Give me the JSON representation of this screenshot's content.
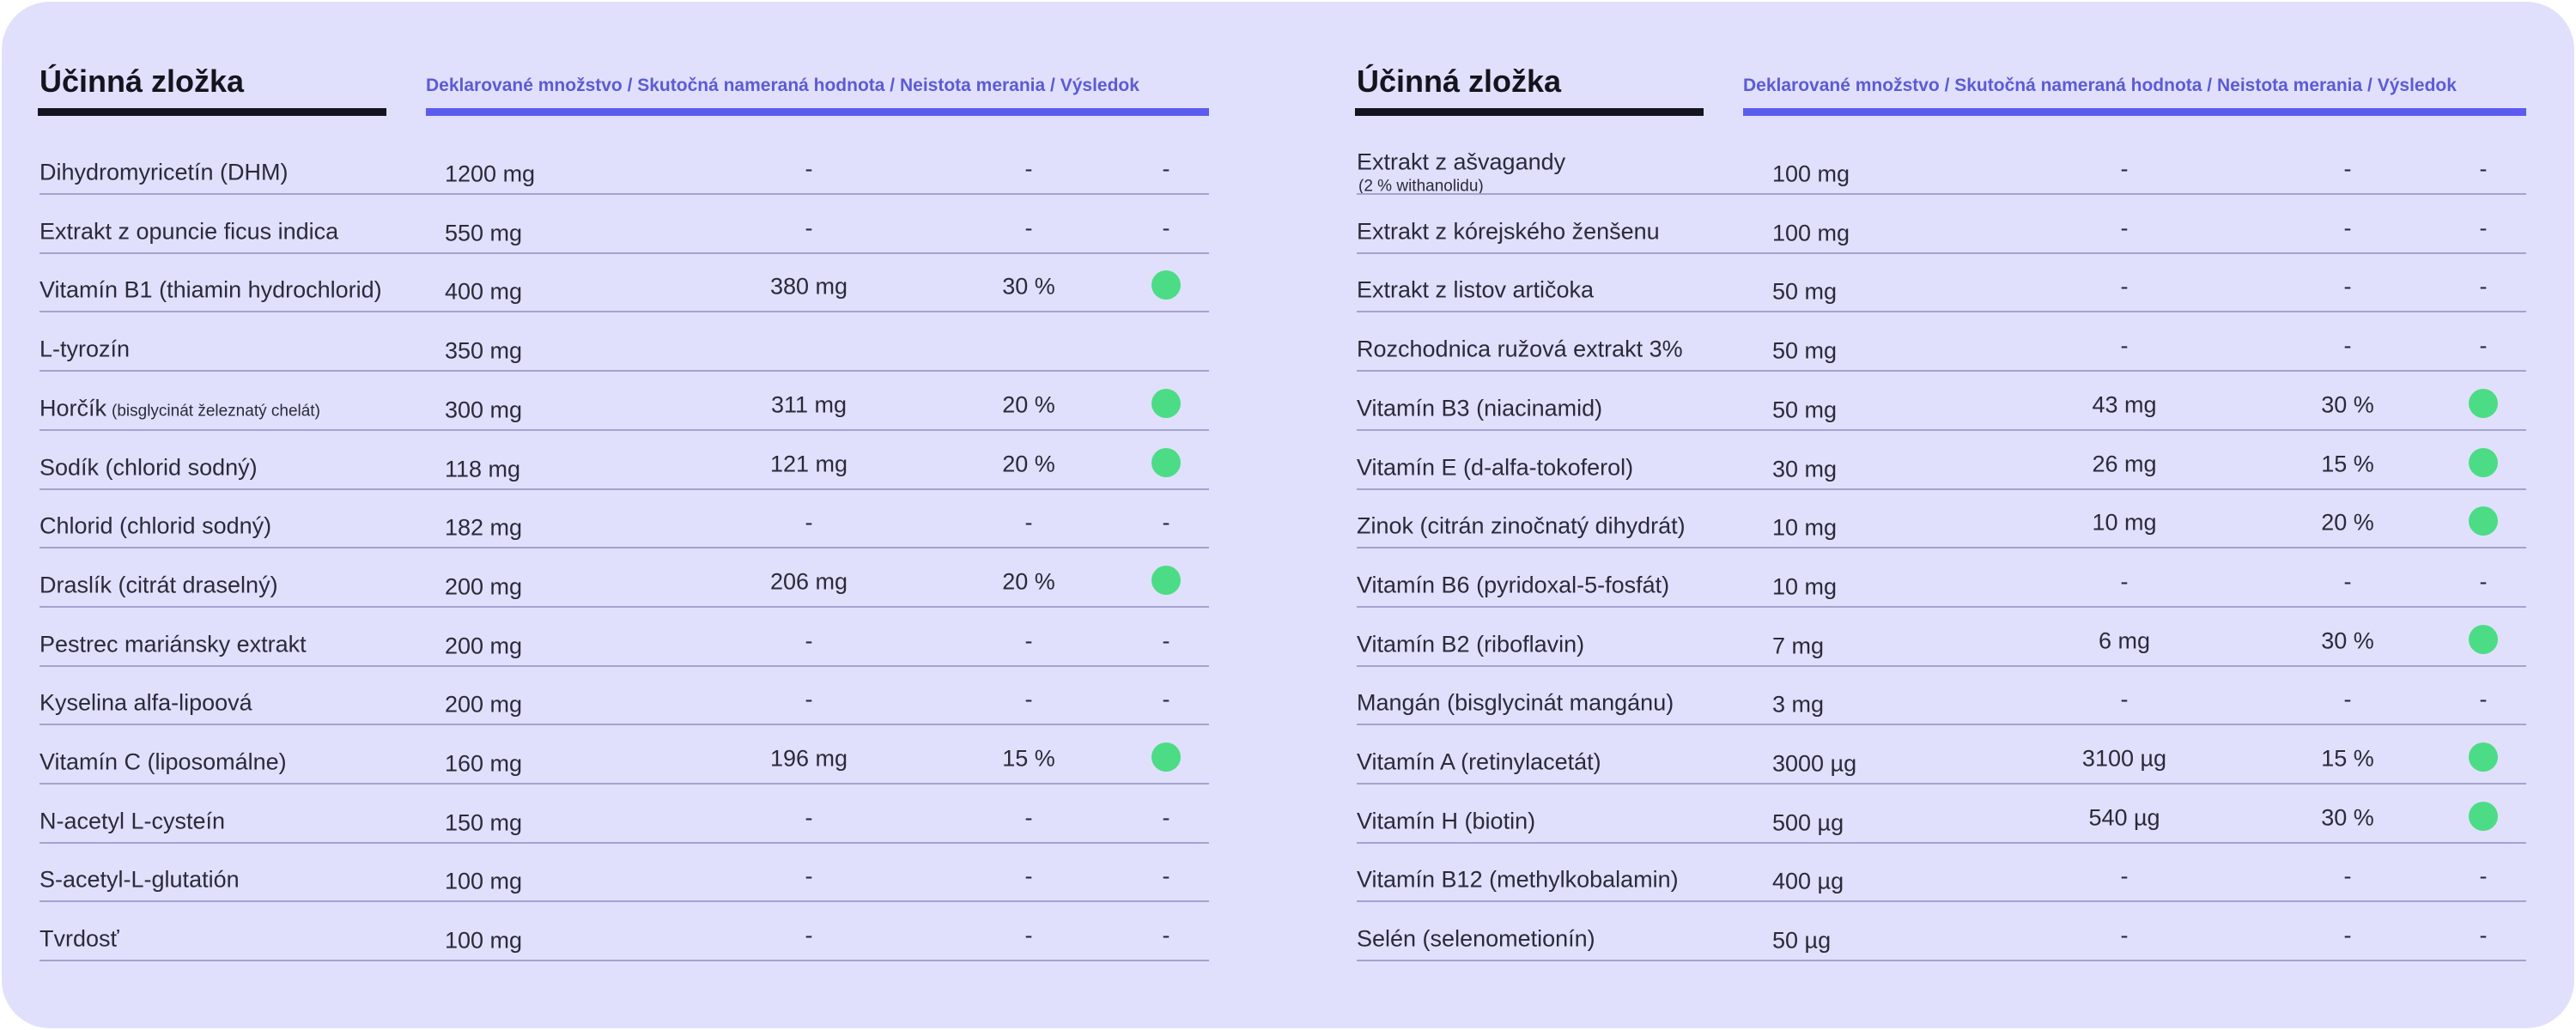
{
  "tables": [
    {
      "header": {
        "title": "Účinná zložka",
        "columns": "Deklarované množstvo / Skutočná nameraná hodnota / Neistota merania / Výsledok"
      },
      "rows": [
        {
          "name": "Dihydromyricetín (DHM)",
          "amount": "1200 mg",
          "measured": "-",
          "uncertainty": "-",
          "result": "-"
        },
        {
          "name": "Extrakt z opuncie ficus indica",
          "amount": "550 mg",
          "measured": "-",
          "uncertainty": "-",
          "result": "-"
        },
        {
          "name": "Vitamín B1 (thiamin hydrochlorid)",
          "amount": "400 mg",
          "measured": "380 mg",
          "uncertainty": "30 %"
        },
        {
          "name": "L-tyrozín",
          "amount": "350 mg"
        },
        {
          "name": "Horčík",
          "note": "(bisglycinát železnatý chelát)",
          "amount": "300 mg",
          "measured": "311 mg",
          "uncertainty": "20 %"
        },
        {
          "name": "Sodík (chlorid sodný)",
          "amount": "118 mg",
          "measured": "121 mg",
          "uncertainty": "20 %"
        },
        {
          "name": "Chlorid (chlorid sodný)",
          "amount": "182 mg",
          "measured": "-",
          "uncertainty": "-",
          "result": "-"
        },
        {
          "name": "Draslík (citrát draselný)",
          "amount": "200 mg",
          "measured": "206 mg",
          "uncertainty": "20 %"
        },
        {
          "name": "Pestrec mariánsky extrakt",
          "amount": "200 mg",
          "measured": "-",
          "uncertainty": "-",
          "result": "-"
        },
        {
          "name": "Kyselina alfa-lipoová",
          "amount": "200 mg",
          "measured": "-",
          "uncertainty": "-",
          "result": "-"
        },
        {
          "name": "Vitamín C (liposomálne)",
          "amount": "160 mg",
          "measured": "196 mg",
          "uncertainty": "15 %"
        },
        {
          "name": "N-acetyl L-cysteín",
          "amount": "150 mg",
          "measured": "-",
          "uncertainty": "-",
          "result": "-"
        },
        {
          "name": "S-acetyl-L-glutatión",
          "amount": "100 mg",
          "measured": "-",
          "uncertainty": "-",
          "result": "-"
        },
        {
          "name": "Tvrdosť",
          "amount": "100 mg",
          "measured": "-",
          "uncertainty": "-",
          "result": "-"
        }
      ]
    },
    {
      "header": {
        "title": "Účinná zložka",
        "columns": "Deklarované množstvo / Skutočná nameraná hodnota / Neistota merania / Výsledok"
      },
      "rows": [
        {
          "name": "Extrakt z ašvagandy",
          "note": "(2 % withanolidu)",
          "amount": "100 mg",
          "measured": "-",
          "uncertainty": "-",
          "result": "-"
        },
        {
          "name": "Extrakt z kórejského ženšenu",
          "amount": "100 mg",
          "measured": "-",
          "uncertainty": "-",
          "result": "-"
        },
        {
          "name": "Extrakt z listov artičoka",
          "amount": "50 mg",
          "measured": "-",
          "uncertainty": "-",
          "result": "-"
        },
        {
          "name": "Rozchodnica ružová extrakt 3%",
          "amount": "50 mg",
          "measured": "-",
          "uncertainty": "-",
          "result": "-"
        },
        {
          "name": "Vitamín B3 (niacinamid)",
          "amount": "50 mg",
          "measured": "43 mg",
          "uncertainty": "30 %"
        },
        {
          "name": "Vitamín E (d-alfa-tokoferol)",
          "amount": "30 mg",
          "measured": "26 mg",
          "uncertainty": "15 %"
        },
        {
          "name": "Zinok (citrán zinočnatý dihydrát)",
          "amount": "10 mg",
          "measured": "10 mg",
          "uncertainty": "20 %"
        },
        {
          "name": "Vitamín B6 (pyridoxal-5-fosfát)",
          "amount": "10 mg",
          "measured": "-",
          "uncertainty": "-",
          "result": "-"
        },
        {
          "name": "Vitamín B2 (riboflavin)",
          "amount": "7 mg",
          "measured": "6 mg",
          "uncertainty": "30 %"
        },
        {
          "name": "Mangán (bisglycinát mangánu)",
          "amount": "3 mg",
          "measured": "-",
          "uncertainty": "-",
          "result": "-"
        },
        {
          "name": "Vitamín A (retinylacetát)",
          "amount": "3000 µg",
          "measured": "3100 µg",
          "uncertainty": "15 %"
        },
        {
          "name": "Vitamín H (biotin)",
          "amount": "500 µg",
          "measured": "540 µg",
          "uncertainty": "30 %"
        },
        {
          "name": "Vitamín B12 (methylkobalamin)",
          "amount": "400 µg",
          "measured": "-",
          "uncertainty": "-",
          "result": "-"
        },
        {
          "name": "Selén (selenometionín)",
          "amount": "50 µg",
          "measured": "-",
          "uncertainty": "-",
          "result": "-"
        }
      ]
    }
  ]
}
